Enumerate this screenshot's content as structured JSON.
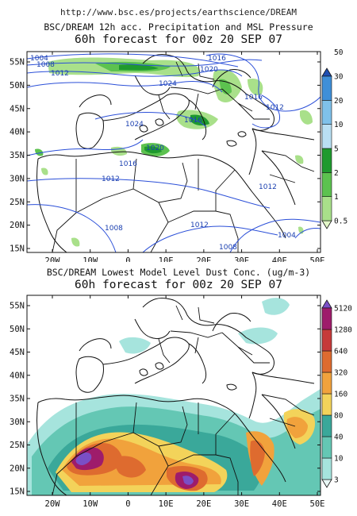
{
  "header": {
    "url": "http://www.bsc.es/projects/earthscience/DREAM"
  },
  "panel_precip": {
    "title_line1": "BSC/DREAM 12h acc. Precipitation and MSL Pressure",
    "title_line2": "60h forecast for 00z 20 SEP 07",
    "isobar_labels": [
      "1004",
      "1008",
      "1012",
      "1016",
      "1020",
      "1024",
      "1016",
      "1012",
      "1016",
      "1020",
      "1024",
      "1016",
      "1012",
      "1008",
      "1012",
      "1008",
      "1004",
      "1012"
    ],
    "colorbar": {
      "levels": [
        "0.5",
        "1",
        "2",
        "5",
        "10",
        "20",
        "30",
        "50"
      ],
      "colors": [
        "#e3f7c8",
        "#a9e08a",
        "#5cc24f",
        "#1f9a2e",
        "#b9dff3",
        "#7fc1ea",
        "#3f8fd8",
        "#1f4fb3"
      ]
    }
  },
  "panel_dust": {
    "title_line1": "BSC/DREAM Lowest Model Level Dust Conc. (ug/m-3)",
    "title_line2": "60h forecast for 00z 20 SEP 07",
    "colorbar": {
      "levels": [
        "3",
        "10",
        "40",
        "80",
        "160",
        "320",
        "640",
        "1280",
        "5120"
      ],
      "colors": [
        "#e8f7f5",
        "#a6e4dd",
        "#64c7b4",
        "#3aa89a",
        "#f3d35a",
        "#f1a23c",
        "#de6b2f",
        "#c63a3a",
        "#9e1c6b",
        "#7a4fc6"
      ]
    }
  },
  "axes": {
    "lat_labels": [
      "55N",
      "50N",
      "45N",
      "40N",
      "35N",
      "30N",
      "25N",
      "20N",
      "15N"
    ],
    "lon_labels": [
      "20W",
      "10W",
      "0",
      "10E",
      "20E",
      "30E",
      "40E",
      "50E"
    ]
  }
}
